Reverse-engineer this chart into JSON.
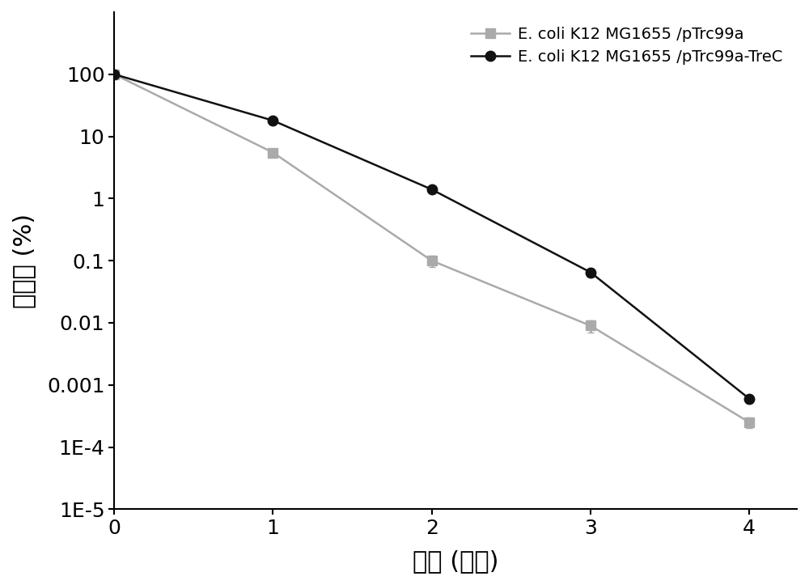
{
  "x": [
    0,
    1,
    2,
    3,
    4
  ],
  "gray_y": [
    100,
    5.5,
    0.1,
    0.009,
    0.00025
  ],
  "gray_yerr": [
    0,
    0.8,
    0.02,
    0.002,
    5e-05
  ],
  "black_y": [
    100,
    18,
    1.4,
    0.065,
    0.0006
  ],
  "black_yerr": [
    0,
    1.5,
    0.15,
    0.01,
    8e-05
  ],
  "gray_color": "#aaaaaa",
  "black_color": "#111111",
  "xlabel": "时间 (小时)",
  "ylabel": "存活率 (%)",
  "label_gray": "E. coli K12 MG1655 /pTrc99a",
  "label_black": "E. coli K12 MG1655 /pTrc99a-TreC",
  "ylim_bottom": 1e-05,
  "ylim_top": 1000,
  "xlim_left": 0,
  "xlim_right": 4.3
}
